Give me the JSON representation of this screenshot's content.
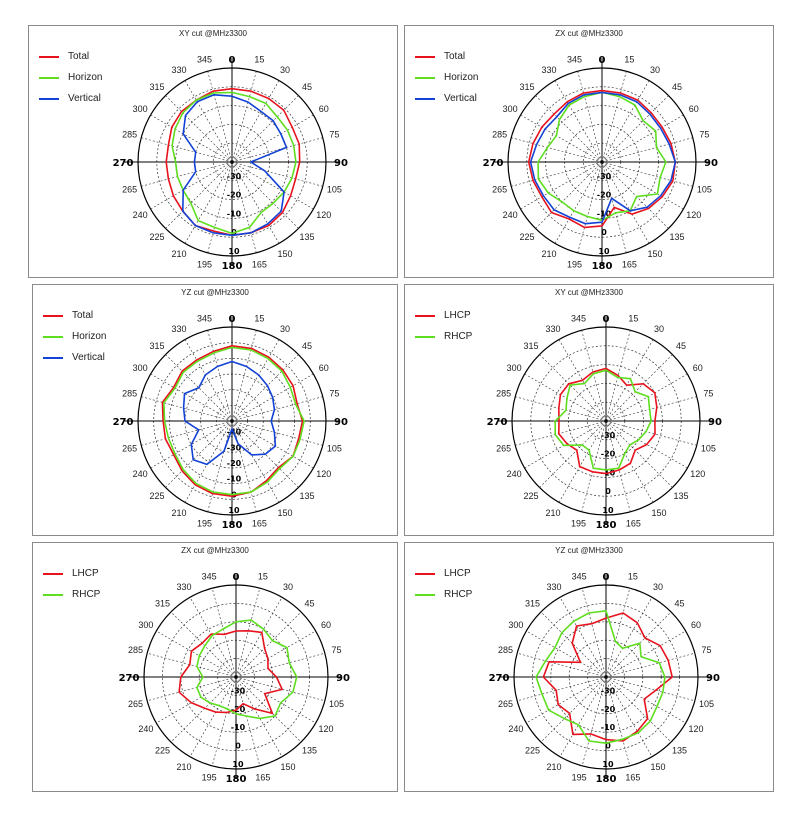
{
  "chart_data": [
    {
      "type": "polar-line",
      "title": "XY cut @MHz3300",
      "angle_labels": [
        "0",
        "15",
        "30",
        "45",
        "60",
        "75",
        "90",
        "105",
        "120",
        "135",
        "150",
        "165",
        "180",
        "195",
        "210",
        "225",
        "240",
        "265",
        "270",
        "285",
        "300",
        "315",
        "330",
        "345"
      ],
      "radial_labels": [
        "-30",
        "-20",
        "-10",
        "0",
        "10"
      ],
      "radial_range": [
        -40,
        10
      ],
      "legend": "top-left",
      "series": [
        {
          "name": "Total",
          "color": "#e8121d",
          "values": [
            -1,
            -1,
            -1,
            -1,
            -3,
            -3,
            -4,
            -5,
            -4,
            -2,
            -1,
            -1,
            -1,
            -2,
            -1,
            -3,
            -4,
            -5,
            -5,
            -5,
            -3,
            -2,
            -2,
            -1
          ]
        },
        {
          "name": "Horizon",
          "color": "#5ede1e",
          "values": [
            -3,
            -4,
            -4,
            -6,
            -6,
            -6,
            -6,
            -7,
            -8,
            -9,
            -9,
            -4,
            -2,
            -4,
            -4,
            -9,
            -10,
            -10,
            -10,
            -7,
            -5,
            -3,
            -2,
            -2
          ]
        },
        {
          "name": "Vertical",
          "color": "#1242d6",
          "values": [
            -5,
            -7,
            -9,
            -9,
            -10,
            -10,
            -30,
            -22,
            -8,
            -3,
            -2,
            -1,
            -1,
            -1,
            -1,
            -3,
            -10,
            -20,
            -20,
            -20,
            -10,
            -5,
            -3,
            -3
          ]
        }
      ]
    },
    {
      "type": "polar-line",
      "title": "ZX cut @MHz3300",
      "angle_labels": [
        "0",
        "15",
        "30",
        "45",
        "60",
        "75",
        "90",
        "105",
        "120",
        "135",
        "150",
        "165",
        "180",
        "195",
        "210",
        "225",
        "240",
        "265",
        "270",
        "285",
        "300",
        "315",
        "330",
        "345"
      ],
      "radial_labels": [
        "-30",
        "-20",
        "-10",
        "0",
        "10"
      ],
      "radial_range": [
        -40,
        10
      ],
      "legend": "top-left",
      "series": [
        {
          "name": "Total",
          "color": "#e8121d",
          "values": [
            -2,
            -2,
            -2,
            -3,
            -3,
            -2,
            -1,
            -1,
            -3,
            -5,
            -8,
            -15,
            -6,
            -4,
            -5,
            -2,
            -3,
            -2,
            -1,
            -2,
            -3,
            -4,
            -3,
            -2
          ]
        },
        {
          "name": "Horizon",
          "color": "#5ede1e",
          "values": [
            -3,
            -4,
            -5,
            -9,
            -7,
            -10,
            -6,
            -8,
            -6,
            -14,
            -10,
            -12,
            -9,
            -10,
            -10,
            -10,
            -7,
            -5,
            -6,
            -10,
            -12,
            -8,
            -5,
            -4
          ]
        },
        {
          "name": "Vertical",
          "color": "#1242d6",
          "values": [
            -3,
            -3,
            -3,
            -4,
            -4,
            -3,
            -1,
            -2,
            -4,
            -6,
            -10,
            -20,
            -8,
            -6,
            -6,
            -4,
            -4,
            -3,
            -2,
            -4,
            -5,
            -6,
            -4,
            -3
          ]
        }
      ]
    },
    {
      "type": "polar-line",
      "title": "YZ cut @MHz3300",
      "angle_labels": [
        "0",
        "15",
        "30",
        "45",
        "60",
        "75",
        "90",
        "105",
        "120",
        "135",
        "150",
        "165",
        "180",
        "195",
        "210",
        "225",
        "240",
        "265",
        "270",
        "285",
        "300",
        "315",
        "330",
        "345"
      ],
      "radial_labels": [
        "-40",
        "-30",
        "-20",
        "-10",
        "0",
        "10"
      ],
      "radial_range": [
        -50,
        10
      ],
      "legend": "top-left",
      "series": [
        {
          "name": "Total",
          "color": "#e8121d",
          "values": [
            -2,
            -2,
            -3,
            -4,
            -5,
            -7,
            -5,
            -6,
            -5,
            -8,
            -6,
            -3,
            -2,
            -2,
            -3,
            -5,
            -7,
            -6,
            -6,
            -4,
            -7,
            -5,
            -5,
            -4
          ]
        },
        {
          "name": "Horizon",
          "color": "#5ede1e",
          "values": [
            -3,
            -3,
            -4,
            -5,
            -7,
            -8,
            -4,
            -5,
            -5,
            -7,
            -5,
            -3,
            -3,
            -3,
            -4,
            -6,
            -8,
            -8,
            -7,
            -5,
            -8,
            -6,
            -6,
            -5
          ]
        },
        {
          "name": "Vertical",
          "color": "#1242d6",
          "values": [
            -12,
            -14,
            -16,
            -18,
            -20,
            -22,
            -25,
            -22,
            -18,
            -20,
            -25,
            -35,
            -45,
            -30,
            -18,
            -15,
            -20,
            -28,
            -20,
            -18,
            -15,
            -20,
            -16,
            -14
          ]
        }
      ]
    },
    {
      "type": "polar-line",
      "title": "XY cut @MHz3300",
      "angle_labels": [
        "0",
        "15",
        "30",
        "45",
        "60",
        "75",
        "90",
        "105",
        "120",
        "135",
        "150",
        "165",
        "180",
        "195",
        "210",
        "225",
        "240",
        "265",
        "270",
        "285",
        "300",
        "315",
        "330",
        "345"
      ],
      "radial_labels": [
        "-30",
        "-20",
        "-10",
        "0",
        "10"
      ],
      "radial_range": [
        -40,
        10
      ],
      "legend": "top-left",
      "series": [
        {
          "name": "LHCP",
          "color": "#e8121d",
          "values": [
            -12,
            -15,
            -18,
            -12,
            -10,
            -12,
            -14,
            -13,
            -15,
            -18,
            -14,
            -13,
            -12,
            -12,
            -12,
            -18,
            -16,
            -14,
            -15,
            -14,
            -12,
            -12,
            -15,
            -13
          ]
        },
        {
          "name": "RHCP",
          "color": "#5ede1e",
          "values": [
            -13,
            -16,
            -14,
            -18,
            -14,
            -16,
            -16,
            -18,
            -20,
            -22,
            -20,
            -14,
            -14,
            -14,
            -22,
            -22,
            -14,
            -12,
            -13,
            -18,
            -16,
            -13,
            -17,
            -14
          ]
        }
      ]
    },
    {
      "type": "polar-line",
      "title": "ZX cut @MHz3300",
      "angle_labels": [
        "0",
        "15",
        "30",
        "45",
        "60",
        "75",
        "90",
        "105",
        "120",
        "135",
        "150",
        "165",
        "180",
        "195",
        "210",
        "225",
        "240",
        "265",
        "270",
        "285",
        "300",
        "315",
        "330",
        "345"
      ],
      "radial_labels": [
        "-30",
        "-20",
        "-10",
        "0",
        "10"
      ],
      "radial_range": [
        -40,
        10
      ],
      "legend": "top-left",
      "series": [
        {
          "name": "LHCP",
          "color": "#e8121d",
          "values": [
            -15,
            -14,
            -12,
            -18,
            -20,
            -22,
            -18,
            -14,
            -22,
            -12,
            -20,
            -25,
            -22,
            -20,
            -18,
            -16,
            -12,
            -8,
            -10,
            -14,
            -12,
            -14,
            -13,
            -16
          ]
        },
        {
          "name": "RHCP",
          "color": "#5ede1e",
          "values": [
            -10,
            -8,
            -10,
            -12,
            -8,
            -10,
            -7,
            -8,
            -12,
            -10,
            -14,
            -18,
            -20,
            -22,
            -22,
            -20,
            -18,
            -18,
            -22,
            -18,
            -17,
            -16,
            -14,
            -13
          ]
        }
      ]
    },
    {
      "type": "polar-line",
      "title": "YZ cut @MHz3300",
      "angle_labels": [
        "0",
        "15",
        "30",
        "45",
        "60",
        "75",
        "90",
        "105",
        "120",
        "135",
        "150",
        "165",
        "180",
        "195",
        "210",
        "225",
        "240",
        "265",
        "270",
        "285",
        "300",
        "315",
        "330",
        "345"
      ],
      "radial_labels": [
        "-30",
        "-20",
        "-10",
        "0",
        "10"
      ],
      "radial_range": [
        -40,
        10
      ],
      "legend": "top-left",
      "series": [
        {
          "name": "LHCP",
          "color": "#e8121d",
          "values": [
            -8,
            -4,
            -6,
            -10,
            -6,
            -5,
            -4,
            -12,
            -16,
            -8,
            -6,
            -4,
            -6,
            -8,
            -4,
            -12,
            -10,
            -12,
            -6,
            -8,
            -24,
            -14,
            -8,
            -10
          ]
        },
        {
          "name": "RHCP",
          "color": "#5ede1e",
          "values": [
            -4,
            -20,
            -22,
            -14,
            -18,
            -10,
            -8,
            -8,
            -8,
            -6,
            -5,
            -5,
            -4,
            -4,
            -10,
            -8,
            -4,
            -4,
            -2,
            -6,
            -8,
            -6,
            -5,
            -4
          ]
        }
      ]
    }
  ]
}
